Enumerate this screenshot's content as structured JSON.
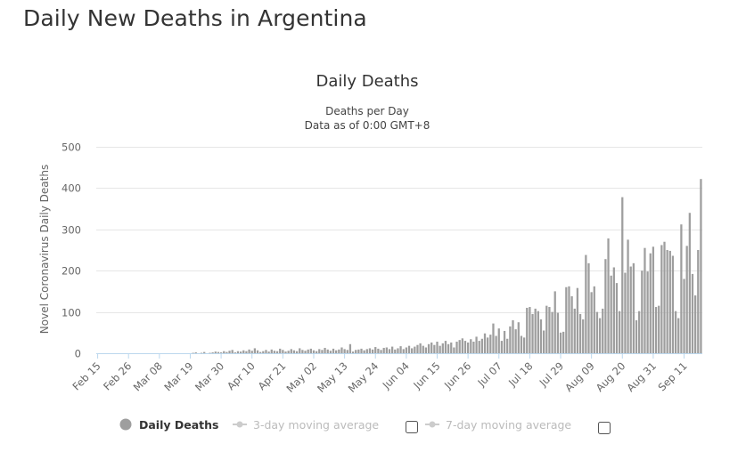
{
  "page": {
    "title": "Daily New Deaths in Argentina"
  },
  "chart_data": {
    "type": "bar",
    "title": "Daily Deaths",
    "subtitle_1": "Deaths per Day",
    "subtitle_2": "Data as of 0:00 GMT+8",
    "ylabel": "Novel Coronavirus Daily Deaths",
    "xlabel": "",
    "ylim": [
      0,
      500
    ],
    "yticks": [
      0,
      100,
      200,
      300,
      400,
      500
    ],
    "x_start": "Feb 15",
    "x_tick_labels": [
      "Feb 15",
      "Feb 26",
      "Mar 08",
      "Mar 19",
      "Mar 30",
      "Apr 10",
      "Apr 21",
      "May 02",
      "May 13",
      "May 24",
      "Jun 04",
      "Jun 15",
      "Jun 26",
      "Jul 07",
      "Jul 18",
      "Jul 29",
      "Aug 09",
      "Aug 20",
      "Aug 31",
      "Sep 11"
    ],
    "x_tick_interval_days": 11,
    "colors": {
      "bars": "#9e9e9e",
      "grid": "#e6e6e6",
      "line": "#bcd8ee"
    },
    "series": [
      {
        "name": "Daily Deaths",
        "values": [
          0,
          0,
          0,
          0,
          0,
          0,
          0,
          0,
          0,
          0,
          0,
          0,
          0,
          0,
          0,
          0,
          0,
          0,
          0,
          0,
          0,
          0,
          0,
          0,
          0,
          0,
          0,
          0,
          0,
          0,
          0,
          0,
          0,
          0,
          1,
          2,
          0,
          1,
          3,
          0,
          1,
          2,
          4,
          3,
          2,
          5,
          3,
          6,
          8,
          2,
          5,
          4,
          7,
          5,
          9,
          6,
          12,
          7,
          3,
          5,
          8,
          4,
          9,
          6,
          5,
          11,
          8,
          4,
          6,
          10,
          7,
          5,
          12,
          8,
          6,
          9,
          11,
          7,
          5,
          10,
          8,
          13,
          9,
          6,
          11,
          7,
          9,
          14,
          10,
          8,
          22,
          4,
          8,
          9,
          11,
          7,
          10,
          12,
          9,
          15,
          11,
          8,
          13,
          14,
          10,
          16,
          9,
          12,
          17,
          10,
          14,
          18,
          12,
          16,
          20,
          24,
          18,
          14,
          22,
          26,
          20,
          28,
          18,
          24,
          30,
          22,
          26,
          14,
          28,
          32,
          36,
          30,
          26,
          34,
          28,
          40,
          30,
          35,
          48,
          38,
          45,
          72,
          42,
          60,
          30,
          54,
          35,
          65,
          80,
          58,
          75,
          42,
          38,
          110,
          112,
          95,
          108,
          102,
          82,
          55,
          115,
          112,
          100,
          150,
          98,
          50,
          52,
          160,
          162,
          138,
          108,
          158,
          95,
          82,
          238,
          218,
          148,
          162,
          100,
          85,
          108,
          228,
          278,
          188,
          208,
          170,
          102,
          378,
          195,
          275,
          210,
          218,
          80,
          102,
          200,
          255,
          198,
          242,
          258,
          112,
          115,
          262,
          270,
          250,
          248,
          236,
          102,
          85,
          312,
          180,
          260,
          340,
          192,
          140,
          250,
          422
        ]
      },
      {
        "name": "3-day moving average",
        "visible": false
      },
      {
        "name": "7-day moving average",
        "visible": false
      }
    ]
  }
}
